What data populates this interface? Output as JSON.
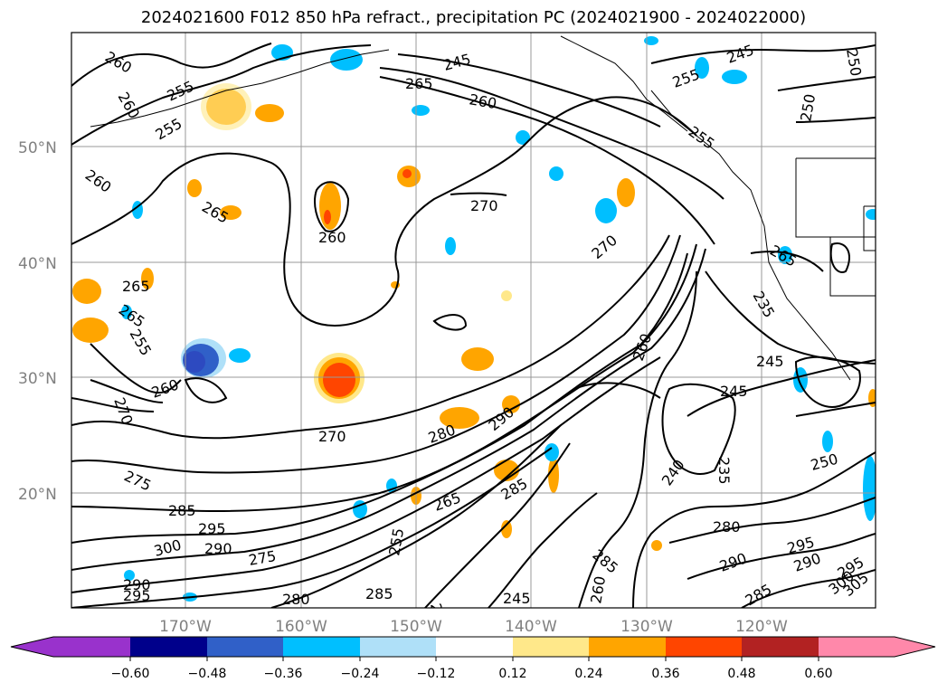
{
  "title": "2024021600 F012 850 hPa refract., precipitation PC (2024021900 - 2024022000)",
  "map": {
    "lat_labels": [
      "50°N",
      "40°N",
      "30°N",
      "20°N"
    ],
    "lon_labels": [
      "170°W",
      "160°W",
      "150°W",
      "140°W",
      "130°W",
      "120°W"
    ],
    "contour_labels": [
      "260",
      "255",
      "255",
      "260",
      "265",
      "260",
      "265",
      "265",
      "255",
      "260",
      "260",
      "270",
      "270",
      "270",
      "280",
      "290",
      "285",
      "275",
      "265",
      "285",
      "295",
      "300",
      "290",
      "275",
      "245",
      "260",
      "265",
      "245",
      "255",
      "250",
      "255",
      "270",
      "265",
      "250",
      "235",
      "245",
      "245",
      "240",
      "235",
      "250",
      "260",
      "280",
      "285",
      "290",
      "295",
      "290",
      "300",
      "295",
      "285",
      "305",
      "245",
      "260",
      "270",
      "255",
      "285",
      "290",
      "295",
      "280"
    ],
    "gridline_color": "#999999",
    "contour_color": "#000000"
  },
  "colorbar": {
    "tick_labels": [
      "−0.60",
      "−0.48",
      "−0.36",
      "−0.24",
      "−0.12",
      "0.12",
      "0.24",
      "0.36",
      "0.48",
      "0.60"
    ],
    "colors": [
      "#9932cc",
      "#00008b",
      "#3060c8",
      "#00bfff",
      "#afe0f8",
      "#ffffff",
      "#ffe88a",
      "#ffa500",
      "#ff4500",
      "#b22222",
      "#ff88aa"
    ]
  }
}
